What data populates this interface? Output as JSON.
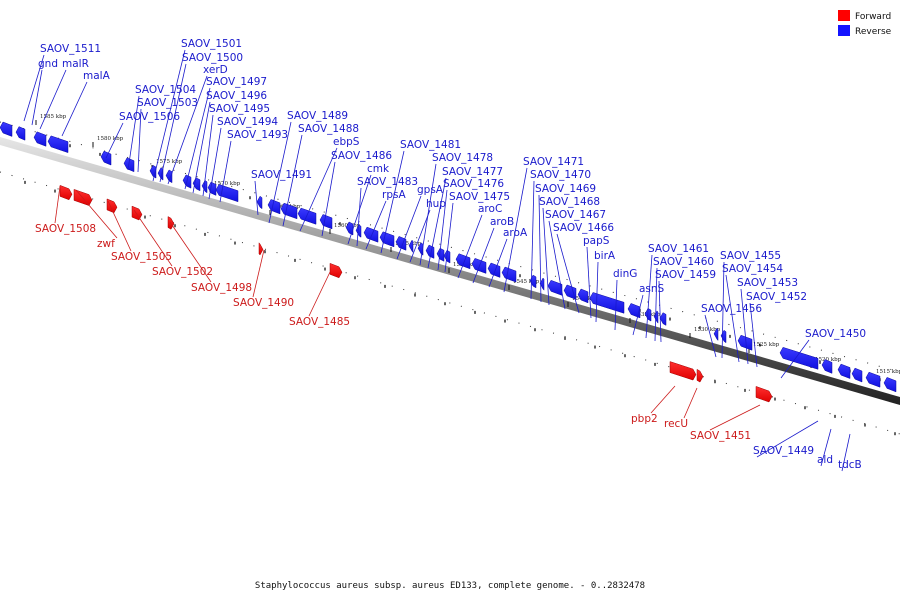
{
  "legend": {
    "forward_label": "Forward",
    "reverse_label": "Reverse",
    "forward_color": "#ff0000",
    "reverse_color": "#1414ff"
  },
  "caption": "Staphylococcus aureus subsp. aureus ED133, complete genome. - 0..2832478",
  "ticks": [
    "1585 kbp",
    "1580 kbp",
    "1575 kbp",
    "1570 kbp",
    "1565 kbp",
    "1560 kbp",
    "1555 kbp",
    "1550 kbp",
    "1545 kbp",
    "1540 kbp",
    "1535 kbp",
    "1530 kbp",
    "1525 kbp",
    "1520 kbp",
    "1515 kbp"
  ],
  "reverse_genes": [
    "SAOV_1511",
    "gnd",
    "malR",
    "malA",
    "SAOV_1506",
    "SAOV_1504",
    "SAOV_1503",
    "SAOV_1501",
    "SAOV_1500",
    "xerD",
    "SAOV_1497",
    "SAOV_1496",
    "SAOV_1495",
    "SAOV_1494",
    "SAOV_1493",
    "SAOV_1491",
    "SAOV_1489",
    "SAOV_1488",
    "ebpS",
    "SAOV_1486",
    "cmk",
    "SAOV_1483",
    "rpsA",
    "SAOV_1481",
    "gpsA",
    "hup",
    "SAOV_1478",
    "SAOV_1477",
    "SAOV_1476",
    "SAOV_1475",
    "aroC",
    "aroB",
    "aroA",
    "SAOV_1471",
    "SAOV_1470",
    "SAOV_1469",
    "SAOV_1468",
    "SAOV_1467",
    "SAOV_1466",
    "papS",
    "birA",
    "dinG",
    "asnS",
    "SAOV_1461",
    "SAOV_1460",
    "SAOV_1459",
    "SAOV_1456",
    "SAOV_1455",
    "SAOV_1454",
    "SAOV_1453",
    "SAOV_1452",
    "SAOV_1450",
    "SAOV_1449",
    "ald",
    "tdcB"
  ],
  "forward_genes": [
    "SAOV_1508",
    "zwf",
    "SAOV_1505",
    "SAOV_1502",
    "SAOV_1498",
    "SAOV_1490",
    "SAOV_1485",
    "pbp2",
    "recU",
    "SAOV_1451"
  ]
}
